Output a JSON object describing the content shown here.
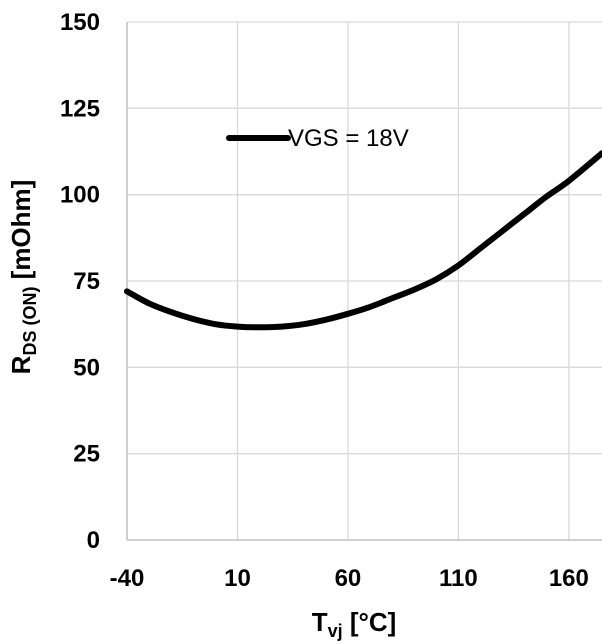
{
  "chart_data": {
    "type": "line",
    "xlabel": {
      "main": "T",
      "sub": "vj",
      "unit": " [°C]"
    },
    "ylabel": {
      "main": "R",
      "sub": "DS (ON)",
      "unit": " [mOhm]"
    },
    "xlim": [
      -40,
      175
    ],
    "ylim": [
      0,
      150
    ],
    "xticks": [
      -40,
      10,
      60,
      110,
      160
    ],
    "yticks": [
      0,
      25,
      50,
      75,
      100,
      125,
      150
    ],
    "grid": true,
    "legend_position": "top-center",
    "series": [
      {
        "name": "VGS = 18V",
        "color": "#000000",
        "x": [
          -40,
          -30,
          -20,
          -10,
          0,
          10,
          20,
          30,
          40,
          50,
          60,
          70,
          80,
          90,
          100,
          110,
          120,
          130,
          140,
          150,
          160,
          175
        ],
        "y": [
          72,
          68.5,
          66,
          64,
          62.5,
          61.8,
          61.6,
          61.8,
          62.5,
          63.8,
          65.5,
          67.5,
          70,
          72.5,
          75.5,
          79.5,
          84.5,
          89.5,
          94.5,
          99.5,
          104,
          112
        ]
      }
    ]
  }
}
